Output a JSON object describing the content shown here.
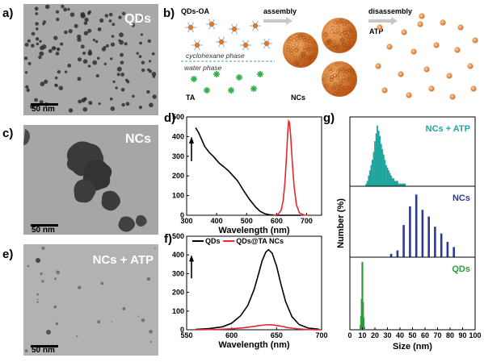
{
  "panels": {
    "a": {
      "label": "a)",
      "overlay": "QDs",
      "scalebar": "50 nm"
    },
    "b": {
      "label": "b)",
      "qds_label": "QDs-OA",
      "assembly_label": "assembly",
      "disassembly_label": "disassembly",
      "atp_label": "ATP",
      "oil_phase_label": "cyclohexane phase",
      "water_phase_label": "water phase",
      "ta_label": "TA",
      "ncs_label": "NCs"
    },
    "c": {
      "label": "c)",
      "overlay": "NCs",
      "scalebar": "50 nm"
    },
    "e": {
      "label": "e)",
      "overlay": "NCs + ATP",
      "scalebar": "50 nm"
    },
    "d": {
      "label": "d)"
    },
    "f": {
      "label": "f)"
    },
    "g": {
      "label": "g)"
    }
  },
  "colors": {
    "tem_bg": "#a9a9a9",
    "qd_orange": "#e0782a",
    "ta_green": "#2fb04a",
    "red_curve": "#e8262b",
    "teal": "#21a59e",
    "navy": "#2d3a92",
    "green": "#2f9a3b"
  },
  "chart_data": [
    {
      "id": "d",
      "type": "line",
      "xlabel": "Wavelength (nm)",
      "ylabel": "",
      "xlim": [
        300,
        750
      ],
      "ylim": [
        0,
        500
      ],
      "xticks": [
        300,
        400,
        500,
        600,
        700
      ],
      "yticks": [
        0,
        100,
        200,
        300,
        400,
        500
      ],
      "series": [
        {
          "color": "#000000",
          "x": [
            330,
            340,
            350,
            360,
            375,
            390,
            400,
            410,
            425,
            440,
            455,
            470,
            490,
            510,
            530,
            545,
            560,
            575,
            590,
            605,
            620,
            640,
            660,
            680
          ],
          "y": [
            445,
            420,
            385,
            350,
            320,
            298,
            280,
            263,
            245,
            225,
            200,
            175,
            125,
            80,
            42,
            20,
            8,
            3,
            1,
            0,
            0,
            0,
            0,
            0
          ]
        },
        {
          "color": "#e8262b",
          "x": [
            590,
            605,
            615,
            622,
            628,
            633,
            637,
            640,
            643,
            647,
            652,
            658,
            666,
            676,
            690,
            705
          ],
          "y": [
            0,
            5,
            25,
            75,
            170,
            300,
            420,
            478,
            470,
            400,
            280,
            150,
            55,
            12,
            2,
            0
          ]
        }
      ]
    },
    {
      "id": "f",
      "type": "line",
      "xlabel": "Wavelength (nm)",
      "ylabel": "",
      "xlim": [
        550,
        700
      ],
      "ylim": [
        0,
        500
      ],
      "xticks": [
        550,
        600,
        650,
        700
      ],
      "yticks": [
        0,
        100,
        200,
        300,
        400,
        500
      ],
      "legend": [
        "QDs",
        "QDs@TA NCs"
      ],
      "series": [
        {
          "name": "QDs",
          "color": "#000000",
          "x": [
            560,
            575,
            590,
            600,
            610,
            618,
            625,
            630,
            634,
            638,
            641,
            645,
            650,
            655,
            660,
            667,
            675,
            685,
            697
          ],
          "y": [
            2,
            6,
            16,
            35,
            75,
            130,
            215,
            300,
            370,
            415,
            428,
            410,
            340,
            240,
            150,
            70,
            28,
            9,
            3
          ]
        },
        {
          "name": "QDs@TA NCs",
          "color": "#e8262b",
          "x": [
            560,
            585,
            600,
            612,
            622,
            630,
            637,
            642,
            647,
            655,
            663,
            673,
            686,
            697
          ],
          "y": [
            0,
            2,
            5,
            10,
            16,
            22,
            26,
            27,
            25,
            19,
            11,
            5,
            1,
            0
          ]
        }
      ]
    },
    {
      "id": "g",
      "type": "bar",
      "xlabel": "Size (nm)",
      "ylabel": "Number (%)",
      "xlim": [
        0,
        100
      ],
      "xticks": [
        0,
        10,
        20,
        30,
        40,
        50,
        60,
        70,
        80,
        90,
        100
      ],
      "subplots": [
        {
          "title": "NCs + ATP",
          "color": "#21a59e",
          "ylim": [
            0,
            25
          ],
          "x": [
            13,
            14,
            15,
            16,
            17,
            18,
            19,
            20,
            21,
            22,
            23,
            24,
            25,
            26,
            27,
            28,
            29,
            30,
            31,
            32,
            33,
            34,
            35,
            36,
            37,
            38,
            39,
            40,
            41,
            42,
            43,
            44
          ],
          "y": [
            1,
            2,
            4,
            6,
            8,
            10,
            13,
            17,
            20,
            23,
            21,
            19,
            16,
            14,
            12,
            10,
            8,
            7,
            6,
            5,
            4,
            3,
            3,
            2,
            2,
            2,
            1,
            1,
            1,
            1,
            1,
            1
          ]
        },
        {
          "title": "NCs",
          "color": "#2d3a92",
          "ylim": [
            0,
            40
          ],
          "x": [
            33,
            38,
            43,
            48,
            53,
            58,
            63,
            68,
            73,
            78,
            83
          ],
          "y": [
            2,
            4,
            19,
            30,
            37,
            28,
            24,
            18,
            14,
            9,
            6
          ]
        },
        {
          "title": "QDs",
          "color": "#2f9a3b",
          "ylim": [
            0,
            45
          ],
          "x": [
            8.5,
            9,
            9.5,
            10,
            10.5,
            11,
            11.5
          ],
          "y": [
            3,
            9,
            20,
            44,
            18,
            8,
            2
          ]
        }
      ]
    }
  ]
}
